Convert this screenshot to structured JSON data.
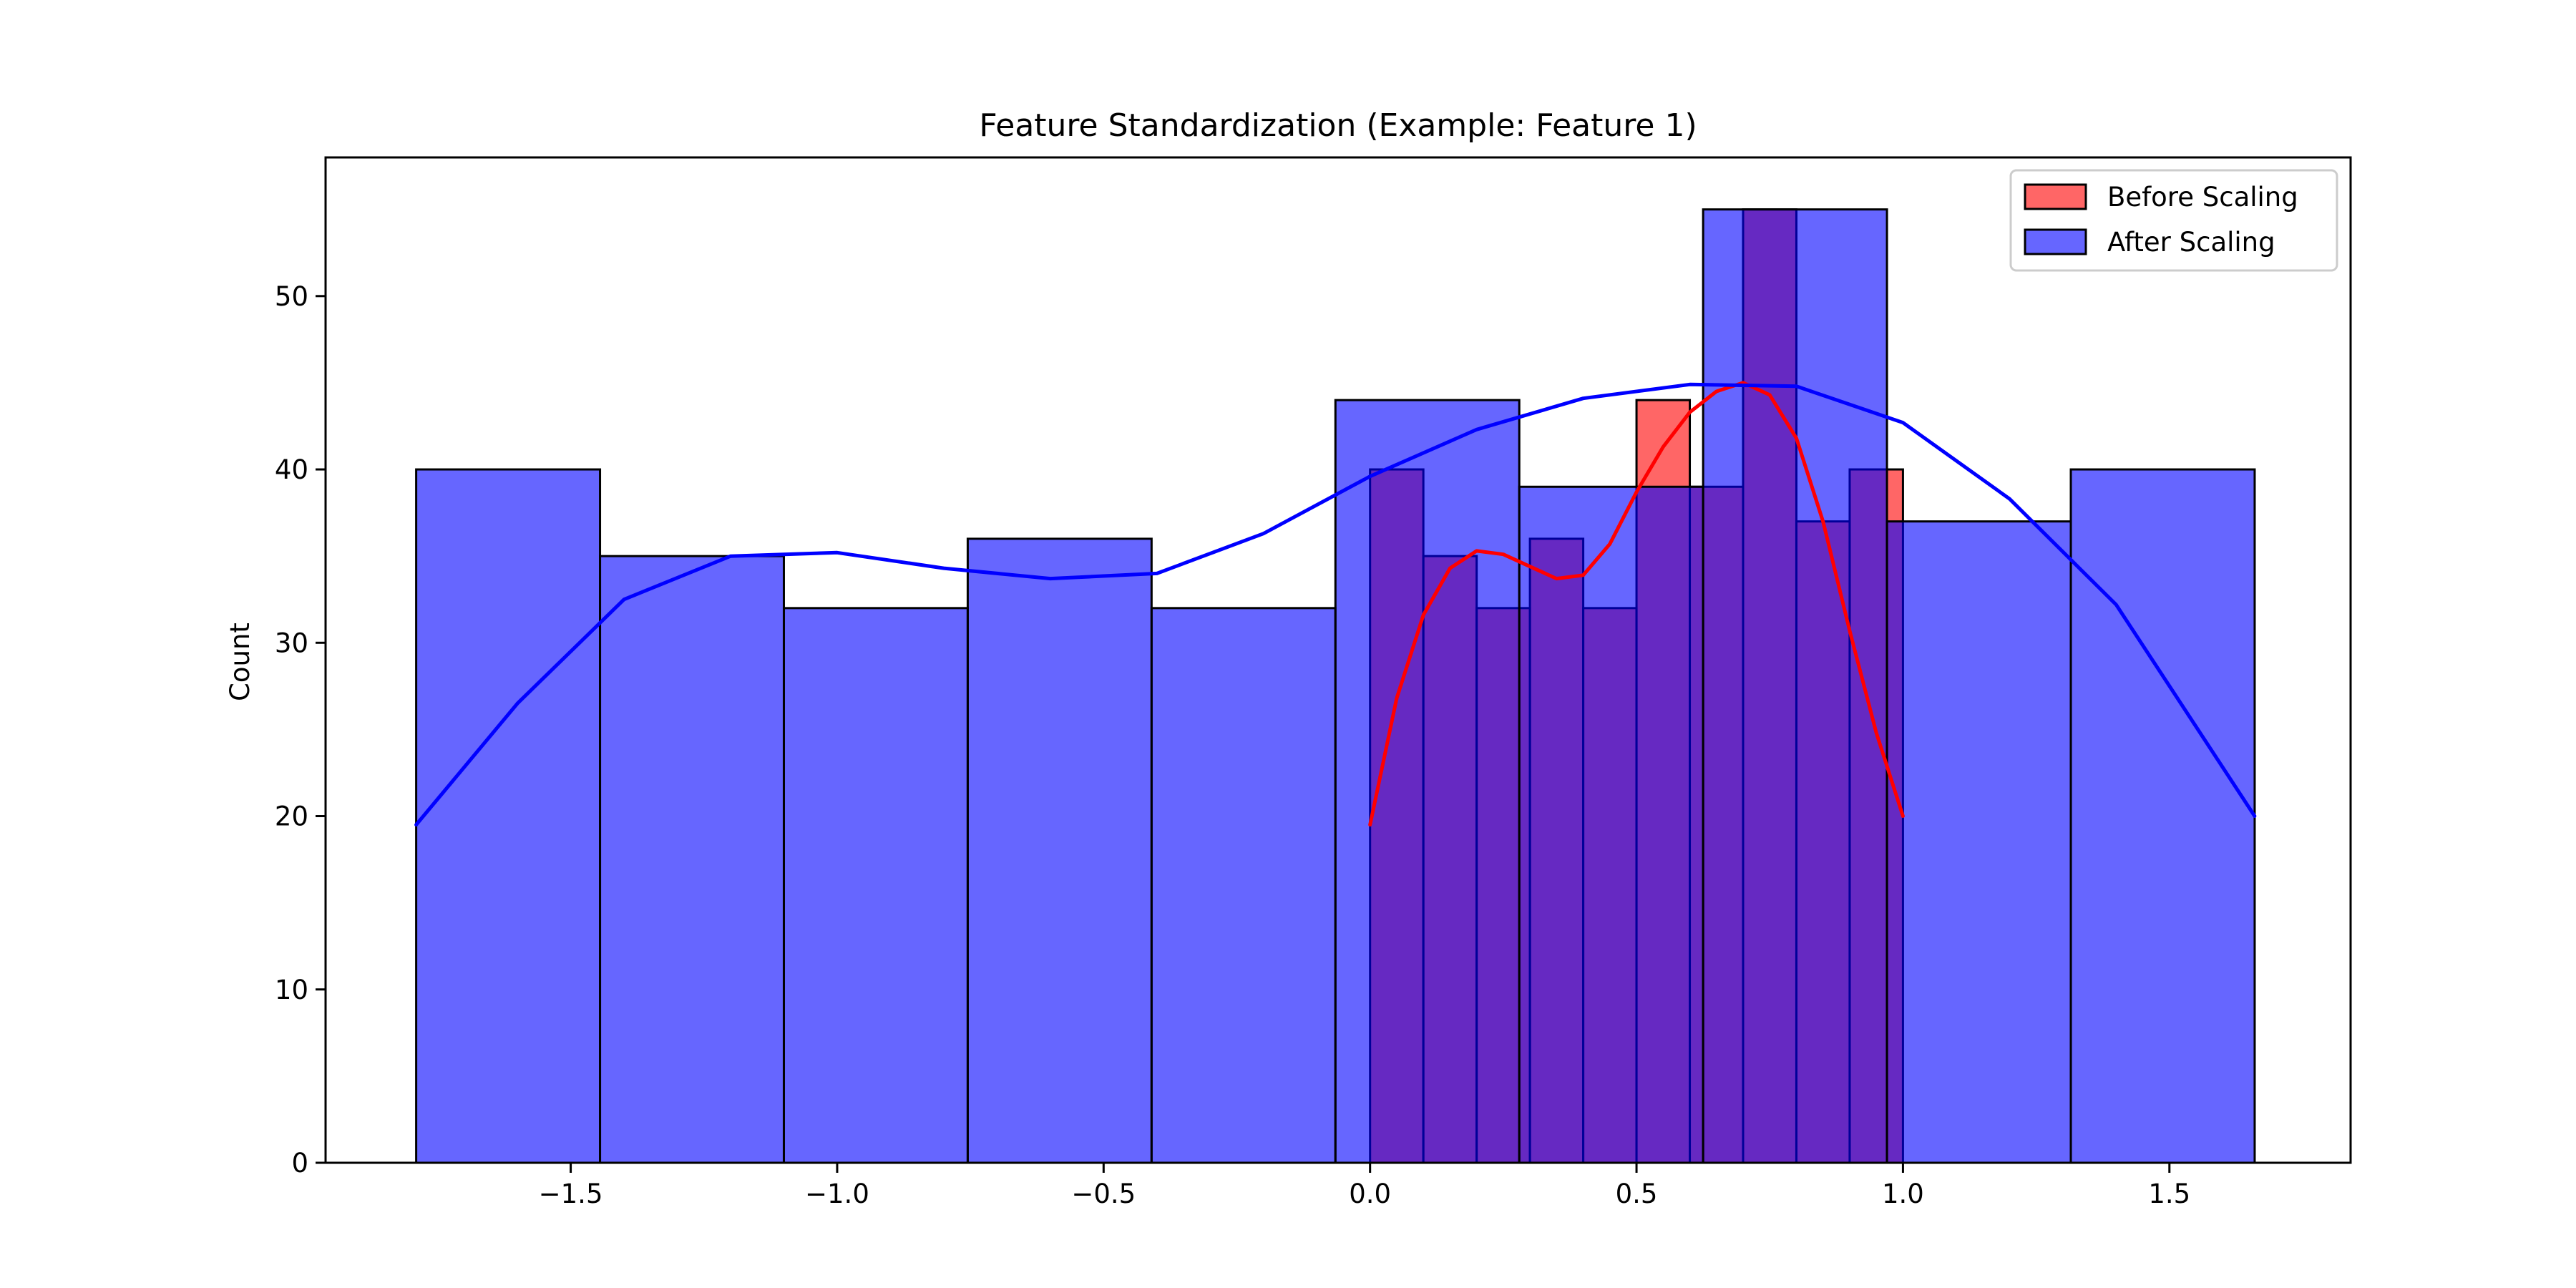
{
  "chart_data": {
    "type": "bar",
    "title": "Feature Standardization (Example: Feature 1)",
    "xlabel": "",
    "ylabel": "Count",
    "xlim": [
      -1.96,
      1.84
    ],
    "ylim": [
      0,
      58
    ],
    "x_ticks": [
      -1.5,
      -1.0,
      -0.5,
      0.0,
      0.5,
      1.0,
      1.5
    ],
    "x_tick_labels": [
      "−1.5",
      "−1.0",
      "−0.5",
      "0.0",
      "0.5",
      "1.0",
      "1.5"
    ],
    "y_ticks": [
      0,
      10,
      20,
      30,
      40,
      50
    ],
    "y_tick_labels": [
      "0",
      "10",
      "20",
      "30",
      "40",
      "50"
    ],
    "grid": false,
    "legend_position": "top-right",
    "series": [
      {
        "name": "Before Scaling",
        "color": "#ff0000",
        "edges": [
          0.0,
          0.1,
          0.2,
          0.3,
          0.4,
          0.5,
          0.6,
          0.7,
          0.8,
          0.9,
          1.0
        ],
        "counts": [
          40,
          35,
          32,
          36,
          32,
          44,
          39,
          55,
          37,
          40
        ],
        "kde_x": [
          0.0,
          0.05,
          0.1,
          0.15,
          0.2,
          0.25,
          0.3,
          0.35,
          0.4,
          0.45,
          0.5,
          0.55,
          0.6,
          0.65,
          0.7,
          0.75,
          0.8,
          0.85,
          0.9,
          0.95,
          1.0
        ],
        "kde_y": [
          19.5,
          26.8,
          31.6,
          34.3,
          35.3,
          35.1,
          34.4,
          33.7,
          33.9,
          35.7,
          38.7,
          41.3,
          43.3,
          44.5,
          45.0,
          44.3,
          41.8,
          37.0,
          30.7,
          24.8,
          20.0
        ]
      },
      {
        "name": "After Scaling",
        "color": "#0000ff",
        "edges": [
          -1.79,
          -1.445,
          -1.1,
          -0.755,
          -0.41,
          -0.065,
          0.28,
          0.625,
          0.97,
          1.315,
          1.66
        ],
        "counts": [
          40,
          35,
          32,
          36,
          32,
          44,
          39,
          55,
          37,
          40
        ],
        "kde_x": [
          -1.79,
          -1.6,
          -1.4,
          -1.2,
          -1.0,
          -0.8,
          -0.6,
          -0.4,
          -0.2,
          0.0,
          0.2,
          0.4,
          0.6,
          0.8,
          1.0,
          1.2,
          1.4,
          1.66
        ],
        "kde_y": [
          19.5,
          26.5,
          32.5,
          35.0,
          35.2,
          34.3,
          33.7,
          34.0,
          36.3,
          39.6,
          42.3,
          44.1,
          44.9,
          44.8,
          42.7,
          38.3,
          32.2,
          20.0
        ]
      }
    ]
  }
}
